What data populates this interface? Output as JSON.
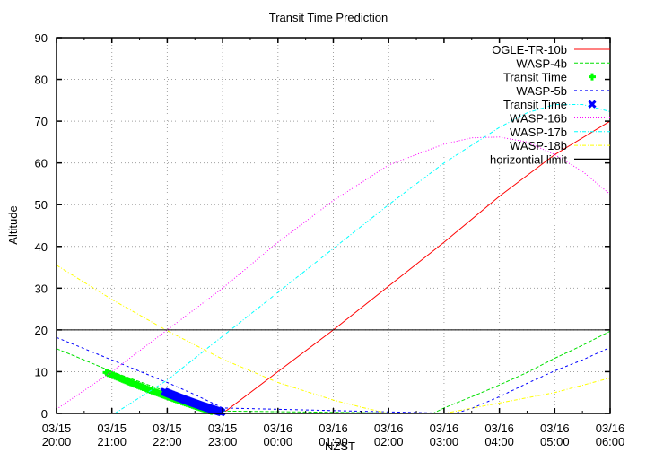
{
  "chart_data": {
    "type": "line",
    "title": "Transit Time Prediction",
    "xlabel": "NZST",
    "ylabel": "Altitude",
    "ylim": [
      0,
      90
    ],
    "yticks": [
      0,
      10,
      20,
      30,
      40,
      50,
      60,
      70,
      80,
      90
    ],
    "xlim_hours": [
      20,
      30
    ],
    "xticks": [
      {
        "h": 20,
        "date": "03/15",
        "time": "20:00"
      },
      {
        "h": 21,
        "date": "03/15",
        "time": "21:00"
      },
      {
        "h": 22,
        "date": "03/15",
        "time": "22:00"
      },
      {
        "h": 23,
        "date": "03/15",
        "time": "23:00"
      },
      {
        "h": 24,
        "date": "03/16",
        "time": "00:00"
      },
      {
        "h": 25,
        "date": "03/16",
        "time": "01:00"
      },
      {
        "h": 26,
        "date": "03/16",
        "time": "02:00"
      },
      {
        "h": 27,
        "date": "03/16",
        "time": "03:00"
      },
      {
        "h": 28,
        "date": "03/16",
        "time": "04:00"
      },
      {
        "h": 29,
        "date": "03/16",
        "time": "05:00"
      },
      {
        "h": 30,
        "date": "03/16",
        "time": "06:00"
      }
    ],
    "grid": true,
    "legend_position": "top-right inside",
    "series": [
      {
        "name": "OGLE-TR-10b",
        "color": "#ff0000",
        "dash": "",
        "kind": "line",
        "x": [
          23.05,
          24,
          25,
          26,
          27,
          28,
          29,
          30
        ],
        "y": [
          0.5,
          10,
          20,
          30.5,
          41,
          52,
          62,
          70
        ]
      },
      {
        "name": "WASP-4b",
        "color": "#00e000",
        "dash": "4,2",
        "kind": "line",
        "x": [
          20,
          20.5,
          21,
          21.5,
          22,
          22.5,
          22.8,
          26.8,
          27,
          27.5,
          28,
          28.5,
          29,
          29.5,
          30
        ],
        "y": [
          15.5,
          12.8,
          10,
          7.6,
          5.2,
          2.5,
          0.6,
          0,
          1.3,
          4,
          6.8,
          9.8,
          13.2,
          16.3,
          19.7
        ]
      },
      {
        "name": "Transit Time",
        "color": "#00ff00",
        "kind": "markers",
        "marker": "plus",
        "x_range": [
          20.9,
          22.8
        ],
        "y_range": [
          9.8,
          0.5
        ]
      },
      {
        "name": "WASP-5b",
        "color": "#0000ff",
        "dash": "3,3",
        "kind": "line",
        "x": [
          20,
          20.5,
          21,
          21.5,
          22,
          22.5,
          23,
          27.2,
          27.5,
          28,
          28.5,
          29,
          29.5,
          30
        ],
        "y": [
          18.2,
          15.5,
          12.8,
          10.1,
          7.4,
          4.5,
          1.3,
          0,
          1.2,
          4,
          7.2,
          10.2,
          12.8,
          15.8
        ]
      },
      {
        "name": "Transit Time",
        "color": "#0000ff",
        "kind": "markers",
        "marker": "cross",
        "x_range": [
          21.95,
          22.98
        ],
        "y_range": [
          5.2,
          0.3
        ]
      },
      {
        "name": "WASP-16b",
        "color": "#ff00ff",
        "dash": "1,2",
        "kind": "line",
        "x": [
          20,
          21,
          22,
          23,
          24,
          25,
          26,
          27,
          27.5,
          28,
          28.5,
          29,
          29.5,
          30
        ],
        "y": [
          1,
          10,
          20,
          30,
          41,
          51,
          59.5,
          64.5,
          66,
          66.2,
          65,
          62,
          58,
          52.5
        ]
      },
      {
        "name": "WASP-17b",
        "color": "#00ffff",
        "dash": "4,2,1,2",
        "kind": "line",
        "x": [
          21.05,
          22,
          23,
          24,
          25,
          26,
          27,
          28,
          28.5,
          29,
          29.5,
          30
        ],
        "y": [
          0,
          8,
          18.5,
          29,
          39.5,
          50,
          60,
          68.5,
          72,
          74,
          74,
          72.3
        ]
      },
      {
        "name": "WASP-18b",
        "color": "#ffff00",
        "dash": "4,2,1,2",
        "kind": "line",
        "x": [
          20,
          21,
          22,
          23,
          24,
          25,
          25.5,
          26,
          27,
          28,
          29,
          30
        ],
        "y": [
          35.5,
          27.3,
          19.8,
          13,
          7.4,
          3.2,
          1.5,
          0,
          0,
          2.5,
          5,
          8.5
        ]
      },
      {
        "name": "horizontial limit",
        "color": "#000000",
        "dash": "",
        "kind": "line",
        "x": [
          20,
          30
        ],
        "y": [
          20,
          20
        ]
      }
    ]
  }
}
